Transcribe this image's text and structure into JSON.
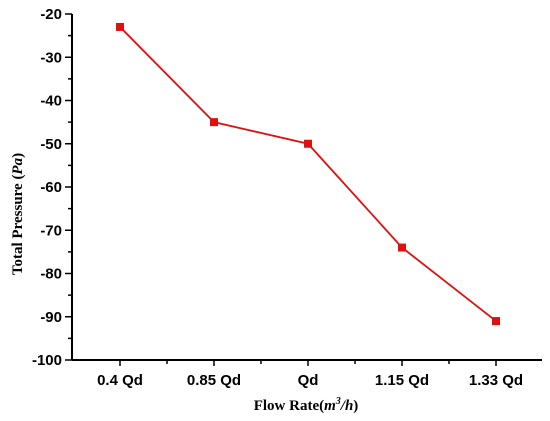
{
  "chart_data": {
    "type": "line",
    "categories": [
      "0.4 Qd",
      "0.85 Qd",
      "Qd",
      "1.15 Qd",
      "1.33 Qd"
    ],
    "series": [
      {
        "values": [
          -23,
          -45,
          -50,
          -74,
          -91
        ]
      }
    ],
    "xlabel": {
      "main": "Flow Rate(",
      "unit_a": "m",
      "sup": "3",
      "unit_b": "/h",
      "close": ")"
    },
    "ylabel": {
      "main": "Total Pressure (",
      "unit": "Pa",
      "close": ")"
    },
    "ylim": [
      -100,
      -20
    ],
    "yticks": [
      "-20",
      "-30",
      "-40",
      "-50",
      "-60",
      "-70",
      "-80",
      "-90",
      "-100"
    ],
    "grid": false,
    "legend": "none",
    "colors": {
      "series": "#e01010",
      "axis": "#000000"
    },
    "marker": "square"
  }
}
